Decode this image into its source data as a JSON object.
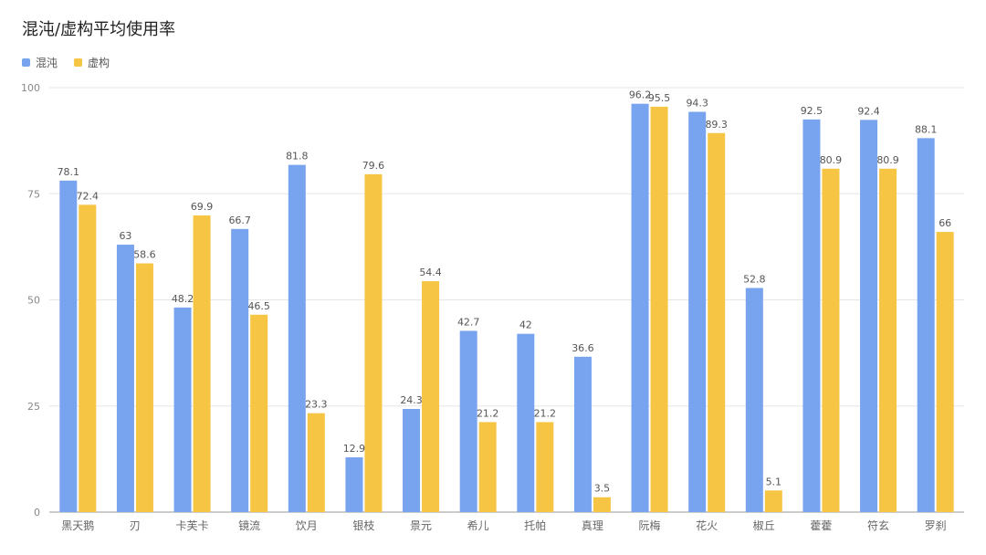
{
  "chart_data": {
    "type": "bar",
    "title": "混沌/虚构平均使用率",
    "categories": [
      "黑天鹅",
      "刃",
      "卡芙卡",
      "镜流",
      "饮月",
      "银枝",
      "景元",
      "希儿",
      "托帕",
      "真理",
      "阮梅",
      "花火",
      "椒丘",
      "藿藿",
      "符玄",
      "罗刹"
    ],
    "series": [
      {
        "name": "混沌",
        "values": [
          78.1,
          63,
          48.2,
          66.7,
          81.8,
          12.9,
          24.3,
          42.7,
          42,
          36.6,
          96.2,
          94.3,
          52.8,
          92.5,
          92.4,
          88.1
        ]
      },
      {
        "name": "虚构",
        "values": [
          72.4,
          58.6,
          69.9,
          46.5,
          23.3,
          79.6,
          54.4,
          21.2,
          21.2,
          3.5,
          95.5,
          89.3,
          5.1,
          80.9,
          80.9,
          66
        ]
      }
    ],
    "ylim": [
      0,
      100
    ],
    "yticks": [
      0,
      25,
      50,
      75,
      100
    ],
    "grid": true,
    "legend_position": "top-left",
    "colors": {
      "混沌": "#78a3ee",
      "虚构": "#f6c544"
    }
  }
}
